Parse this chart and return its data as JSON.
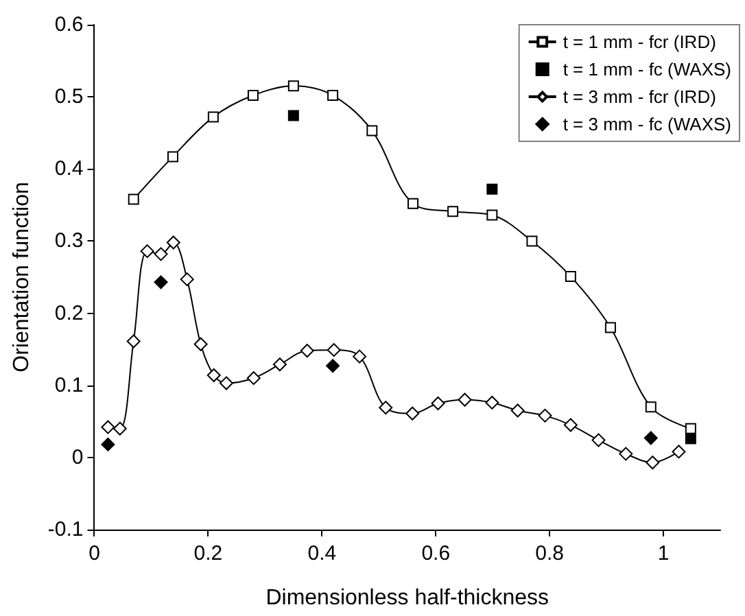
{
  "chart_data": {
    "type": "line",
    "xlabel": "Dimensionless half-thickness",
    "ylabel": "Orientation function",
    "xlim": [
      0,
      1.1
    ],
    "xticks": [
      0,
      0.2,
      0.4,
      0.6,
      0.8,
      1
    ],
    "ylim": [
      -0.1,
      0.6
    ],
    "yticks": [
      -0.1,
      0,
      0.1,
      0.2,
      0.3,
      0.4,
      0.5,
      0.6
    ],
    "grid": false,
    "legend": "top right",
    "series": [
      {
        "name": "t = 1 mm - fcr (IRD)",
        "marker": "square",
        "color": "#000000",
        "x": [
          0.069,
          0.138,
          0.209,
          0.279,
          0.35,
          0.419,
          0.488,
          0.56,
          0.63,
          0.699,
          0.769,
          0.837,
          0.907,
          0.978,
          1.048
        ],
        "values": [
          0.358,
          0.417,
          0.472,
          0.502,
          0.515,
          0.502,
          0.453,
          0.352,
          0.341,
          0.336,
          0.3,
          0.251,
          0.18,
          0.07,
          0.04
        ]
      },
      {
        "name": "t = 1 mm - fc (WAXS)",
        "type": "scatter",
        "marker": "square",
        "color": "#000000",
        "x": [
          0.35,
          0.699,
          1.048
        ],
        "values": [
          0.474,
          0.372,
          0.026
        ]
      },
      {
        "name": "t = 3 mm - fcr (IRD)",
        "marker": "diamond",
        "color": "#000000",
        "x": [
          0.024,
          0.045,
          0.069,
          0.093,
          0.117,
          0.139,
          0.163,
          0.187,
          0.21,
          0.232,
          0.28,
          0.326,
          0.374,
          0.421,
          0.466,
          0.512,
          0.559,
          0.604,
          0.651,
          0.699,
          0.744,
          0.792,
          0.837,
          0.886,
          0.934,
          0.981,
          1.027
        ],
        "values": [
          0.042,
          0.04,
          0.161,
          0.286,
          0.282,
          0.298,
          0.247,
          0.157,
          0.114,
          0.103,
          0.11,
          0.129,
          0.148,
          0.149,
          0.14,
          0.069,
          0.061,
          0.075,
          0.08,
          0.076,
          0.065,
          0.058,
          0.045,
          0.024,
          0.005,
          -0.007,
          0.008
        ]
      },
      {
        "name": "t = 3 mm - fc (WAXS)",
        "type": "scatter",
        "marker": "diamond",
        "color": "#000000",
        "x": [
          0.024,
          0.117,
          0.419,
          0.978
        ],
        "values": [
          0.018,
          0.243,
          0.127,
          0.027
        ]
      }
    ]
  }
}
